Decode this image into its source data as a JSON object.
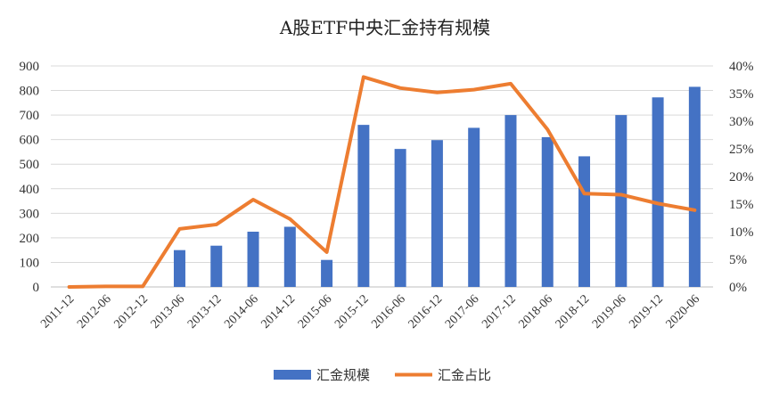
{
  "chart_data": {
    "type": "bar+line",
    "title": "A股ETF中央汇金持有规模",
    "categories": [
      "2011-12",
      "2012-06",
      "2012-12",
      "2013-06",
      "2013-12",
      "2014-06",
      "2014-12",
      "2015-06",
      "2015-12",
      "2016-06",
      "2016-12",
      "2017-06",
      "2017-12",
      "2018-06",
      "2018-12",
      "2019-06",
      "2019-12",
      "2020-06"
    ],
    "series": [
      {
        "name": "汇金规模",
        "type": "bar",
        "axis": "left",
        "color": "#4472C4",
        "values": [
          0,
          0,
          0,
          150,
          168,
          225,
          245,
          110,
          660,
          562,
          598,
          648,
          700,
          610,
          532,
          700,
          772,
          815
        ]
      },
      {
        "name": "汇金占比",
        "type": "line",
        "axis": "right",
        "color": "#ED7D31",
        "values": [
          0,
          0.1,
          0.1,
          10.5,
          11.3,
          15.8,
          12.3,
          6.3,
          38.0,
          36.0,
          35.2,
          35.7,
          36.8,
          28.5,
          16.9,
          16.7,
          15.1,
          13.9
        ]
      }
    ],
    "y_left": {
      "min": 0,
      "max": 900,
      "step": 100,
      "tick_labels": [
        "0",
        "100",
        "200",
        "300",
        "400",
        "500",
        "600",
        "700",
        "800",
        "900"
      ]
    },
    "y_right": {
      "min": 0,
      "max": 40,
      "step": 5,
      "tick_labels": [
        "0%",
        "5%",
        "10%",
        "15%",
        "20%",
        "25%",
        "30%",
        "35%",
        "40%"
      ]
    },
    "grid": true,
    "legend_position": "bottom-center"
  }
}
